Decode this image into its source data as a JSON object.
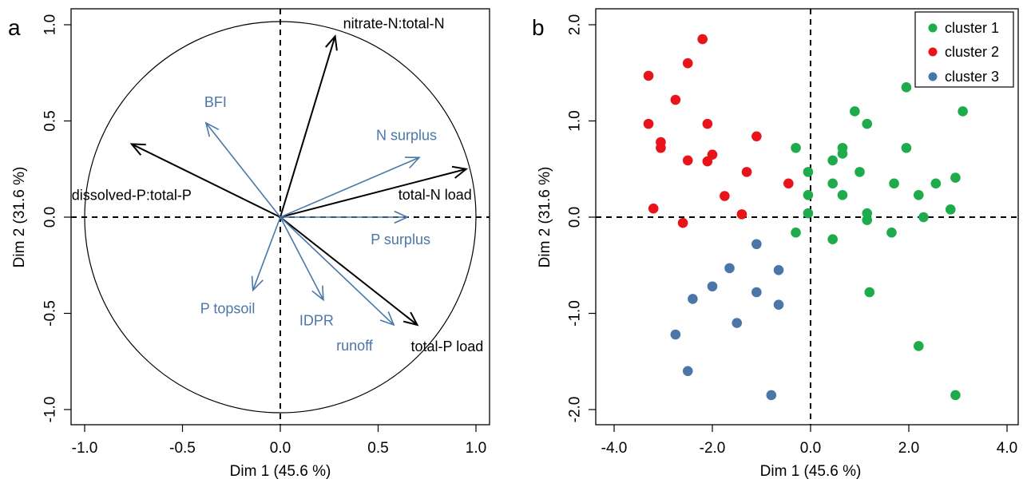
{
  "chart_data": [
    {
      "panel": "a",
      "type": "scatter",
      "xlabel": "Dim 1 (45.6 %)",
      "ylabel": "Dim 2 (31.6 %)",
      "xlim": [
        -1.0,
        1.0
      ],
      "ylim": [
        -1.0,
        1.0
      ],
      "xticks": [
        "-1.0",
        "-0.5",
        "0.0",
        "0.5",
        "1.0"
      ],
      "yticks": [
        "-1.0",
        "-0.5",
        "0.0",
        "0.5",
        "1.0"
      ],
      "xtick_values": [
        -1.0,
        -0.5,
        0.0,
        0.5,
        1.0
      ],
      "ytick_values": [
        -1.0,
        -0.5,
        0.0,
        0.5,
        1.0
      ],
      "colors": {
        "response": "#000000",
        "driver": "#4a77a8"
      },
      "arrows": [
        {
          "label": "nitrate-N:total-N",
          "x": 0.28,
          "y": 0.94,
          "group": "response"
        },
        {
          "label": "dissolved-P:total-P",
          "x": -0.76,
          "y": 0.38,
          "group": "response"
        },
        {
          "label": "total-N load",
          "x": 0.95,
          "y": 0.25,
          "group": "response"
        },
        {
          "label": "total-P load",
          "x": 0.7,
          "y": -0.56,
          "group": "response"
        },
        {
          "label": "BFI",
          "x": -0.38,
          "y": 0.49,
          "group": "driver"
        },
        {
          "label": "N surplus",
          "x": 0.71,
          "y": 0.31,
          "group": "driver"
        },
        {
          "label": "P surplus",
          "x": 0.65,
          "y": 0.0,
          "group": "driver"
        },
        {
          "label": "P topsoil",
          "x": -0.14,
          "y": -0.38,
          "group": "driver"
        },
        {
          "label": "IDPR",
          "x": 0.22,
          "y": -0.43,
          "group": "driver"
        },
        {
          "label": "runoff",
          "x": 0.58,
          "y": -0.56,
          "group": "driver"
        }
      ]
    },
    {
      "panel": "b",
      "type": "scatter",
      "xlabel": "Dim 1 (45.6 %)",
      "ylabel": "Dim 2 (31.6 %)",
      "xlim": [
        -4.0,
        4.0
      ],
      "ylim": [
        -2.0,
        2.0
      ],
      "xticks": [
        "-4.0",
        "-2.0",
        "0.0",
        "2.0",
        "4.0"
      ],
      "yticks": [
        "-2.0",
        "-1.0",
        "0.0",
        "1.0",
        "2.0"
      ],
      "xtick_values": [
        -4.0,
        -2.0,
        0.0,
        2.0,
        4.0
      ],
      "ytick_values": [
        -2.0,
        -1.0,
        0.0,
        1.0,
        2.0
      ],
      "legend_position": "top-right",
      "series": [
        {
          "name": "cluster 1",
          "color": "#1eab4b",
          "points": [
            [
              1.95,
              1.35
            ],
            [
              3.1,
              1.1
            ],
            [
              0.9,
              1.1
            ],
            [
              1.15,
              0.97
            ],
            [
              1.95,
              0.72
            ],
            [
              0.65,
              0.72
            ],
            [
              -0.3,
              0.72
            ],
            [
              0.65,
              0.66
            ],
            [
              0.45,
              0.59
            ],
            [
              -0.05,
              0.47
            ],
            [
              1.0,
              0.47
            ],
            [
              2.95,
              0.41
            ],
            [
              0.45,
              0.35
            ],
            [
              1.7,
              0.35
            ],
            [
              2.55,
              0.35
            ],
            [
              -0.05,
              0.23
            ],
            [
              0.65,
              0.23
            ],
            [
              2.2,
              0.23
            ],
            [
              2.85,
              0.08
            ],
            [
              -0.05,
              0.04
            ],
            [
              1.15,
              0.04
            ],
            [
              2.3,
              0.0
            ],
            [
              1.15,
              -0.03
            ],
            [
              -0.3,
              -0.16
            ],
            [
              1.65,
              -0.16
            ],
            [
              0.45,
              -0.23
            ],
            [
              1.2,
              -0.78
            ],
            [
              2.2,
              -1.34
            ],
            [
              2.95,
              -1.85
            ]
          ]
        },
        {
          "name": "cluster 2",
          "color": "#e8141a",
          "points": [
            [
              -2.2,
              1.85
            ],
            [
              -2.5,
              1.6
            ],
            [
              -3.3,
              1.47
            ],
            [
              -2.75,
              1.22
            ],
            [
              -3.3,
              0.97
            ],
            [
              -2.1,
              0.97
            ],
            [
              -1.1,
              0.84
            ],
            [
              -3.05,
              0.78
            ],
            [
              -3.05,
              0.72
            ],
            [
              -2.0,
              0.65
            ],
            [
              -2.5,
              0.59
            ],
            [
              -2.1,
              0.58
            ],
            [
              -1.3,
              0.47
            ],
            [
              -0.45,
              0.35
            ],
            [
              -1.75,
              0.22
            ],
            [
              -3.2,
              0.09
            ],
            [
              -1.4,
              0.03
            ],
            [
              -2.6,
              -0.06
            ]
          ]
        },
        {
          "name": "cluster 3",
          "color": "#4a77a8",
          "points": [
            [
              -1.1,
              -0.28
            ],
            [
              -1.65,
              -0.53
            ],
            [
              -0.65,
              -0.55
            ],
            [
              -2.0,
              -0.72
            ],
            [
              -1.1,
              -0.78
            ],
            [
              -2.4,
              -0.85
            ],
            [
              -0.65,
              -0.91
            ],
            [
              -1.5,
              -1.1
            ],
            [
              -2.75,
              -1.22
            ],
            [
              -2.5,
              -1.6
            ],
            [
              -0.8,
              -1.85
            ]
          ]
        }
      ]
    }
  ]
}
